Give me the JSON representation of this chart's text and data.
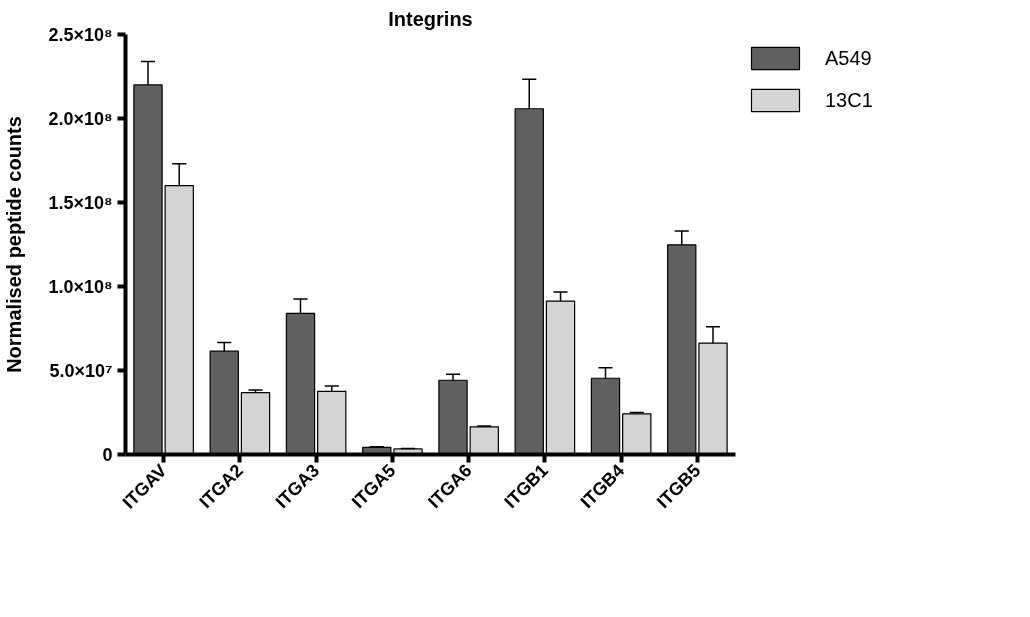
{
  "chart_data": {
    "type": "bar",
    "title": "Integrins",
    "ylabel": "Normalised peptide counts",
    "categories": [
      "ITGAV",
      "ITGA2",
      "ITGA3",
      "ITGA5",
      "ITGA6",
      "ITGB1",
      "ITGB4",
      "ITGB5"
    ],
    "series": [
      {
        "name": "A549",
        "color": "#606060",
        "values": [
          220000000,
          61500000,
          84000000,
          4300000,
          44200000,
          205800000,
          45400000,
          124800000
        ],
        "errors": [
          [
            220000000,
            234000000
          ],
          [
            61500000,
            66600000
          ],
          [
            84000000,
            92500000
          ],
          [
            4300000,
            4600000
          ],
          [
            44200000,
            47800000
          ],
          [
            205800000,
            223400000
          ],
          [
            45400000,
            51600000
          ],
          [
            124800000,
            133000000
          ]
        ]
      },
      {
        "name": "13C1",
        "color": "#d4d4d4",
        "values": [
          160000000,
          36800000,
          37600000,
          3300000,
          16500000,
          91300000,
          24200000,
          66300000
        ],
        "errors": [
          [
            160000000,
            173000000
          ],
          [
            36800000,
            38400000
          ],
          [
            37600000,
            40700000
          ],
          [
            3300000,
            3600000
          ],
          [
            16500000,
            16900000
          ],
          [
            91300000,
            96800000
          ],
          [
            24200000,
            25000000
          ],
          [
            66300000,
            76000000
          ]
        ]
      }
    ],
    "ylim": [
      0,
      250000000
    ],
    "yticks": [
      {
        "value": 0,
        "label": "0"
      },
      {
        "value": 50000000,
        "label": "5.0×10⁷"
      },
      {
        "value": 100000000,
        "label": "1.0×10⁸"
      },
      {
        "value": 150000000,
        "label": "1.5×10⁸"
      },
      {
        "value": 200000000,
        "label": "2.0×10⁸"
      },
      {
        "value": 250000000,
        "label": "2.5×10⁸"
      }
    ],
    "grid": false,
    "legend": "right"
  }
}
